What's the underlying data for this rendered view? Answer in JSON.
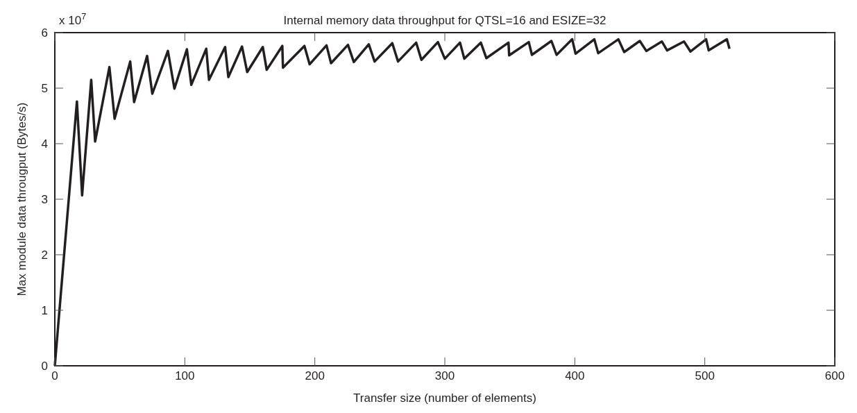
{
  "chart_data": {
    "type": "line",
    "title": "Internal memory data throughput for QTSL=16 and ESIZE=32",
    "xlabel": "Transfer size (number of elements)",
    "ylabel": "Max module data througput (Bytes/s)",
    "annotations": [
      "x 10$^{7}$"
    ],
    "xlim": [
      0,
      600
    ],
    "xticks": [
      0,
      100,
      200,
      300,
      400,
      500,
      600
    ],
    "ylim": [
      0,
      6
    ],
    "yticks": [
      0,
      1,
      2,
      3,
      4,
      5,
      6
    ],
    "grid": false,
    "marker": "none",
    "line_style": "solid",
    "series": [
      {
        "color": "#231f20",
        "x": [
          0,
          17,
          21,
          28,
          31,
          42,
          46,
          58,
          61,
          71,
          75,
          87,
          92,
          101.6,
          105,
          116.5,
          118.6,
          131,
          133.5,
          144,
          148,
          160,
          163,
          175,
          175.5,
          192,
          196,
          209,
          212.5,
          225.5,
          230,
          241.5,
          246,
          259.6,
          264,
          278,
          282,
          294.7,
          300,
          311.7,
          315,
          327.7,
          332,
          349,
          349.5,
          364.6,
          367,
          382,
          386,
          398,
          400.6,
          415,
          418,
          433.5,
          438,
          450,
          455,
          467,
          471,
          484,
          489,
          501,
          503,
          517,
          519
        ],
        "values": [
          0,
          4.76,
          3.07,
          5.15,
          4.04,
          5.38,
          4.45,
          5.48,
          4.75,
          5.58,
          4.9,
          5.67,
          4.99,
          5.7,
          5.06,
          5.71,
          5.15,
          5.74,
          5.2,
          5.75,
          5.29,
          5.74,
          5.33,
          5.76,
          5.37,
          5.76,
          5.43,
          5.77,
          5.45,
          5.78,
          5.47,
          5.79,
          5.48,
          5.81,
          5.48,
          5.82,
          5.51,
          5.83,
          5.53,
          5.82,
          5.53,
          5.82,
          5.54,
          5.82,
          5.59,
          5.83,
          5.6,
          5.85,
          5.6,
          5.88,
          5.62,
          5.88,
          5.63,
          5.88,
          5.65,
          5.85,
          5.67,
          5.84,
          5.68,
          5.84,
          5.66,
          5.88,
          5.68,
          5.88,
          5.71
        ]
      }
    ]
  }
}
